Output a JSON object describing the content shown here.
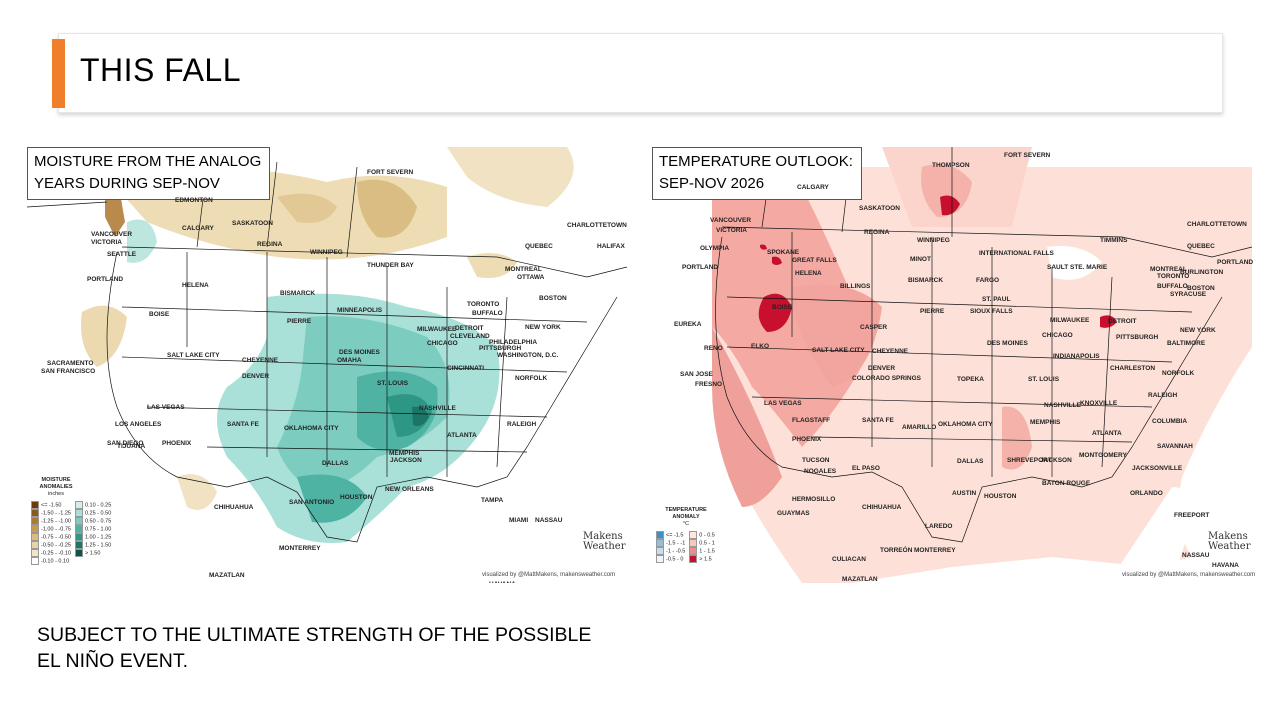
{
  "slide": {
    "title": "THIS FALL",
    "accent_color": "#f07f2b",
    "footnote_line1": "SUBJECT TO THE ULTIMATE STRENGTH OF THE POSSIBLE",
    "footnote_line2": "EL NIÑO EVENT."
  },
  "moisture_map": {
    "label_line1": "MOISTURE FROM THE ANALOG",
    "label_line2": "YEARS DURING SEP-NOV",
    "legend_title_1": "MOISTURE",
    "legend_title_2": "ANOMALIES",
    "legend_unit": "inches",
    "legend_left": [
      {
        "label": "<= -1.50",
        "color": "#6b3b0a"
      },
      {
        "label": "-1.50 - -1.25",
        "color": "#8c5a1b"
      },
      {
        "label": "-1.25 - -1.00",
        "color": "#ad7b35"
      },
      {
        "label": "-1.00 - -0.75",
        "color": "#c89a55"
      },
      {
        "label": "-0.75 - -0.50",
        "color": "#dcbb7e"
      },
      {
        "label": "-0.50 - -0.25",
        "color": "#e9d3a4"
      },
      {
        "label": "-0.25 - -0.10",
        "color": "#f3e6c8"
      },
      {
        "label": "-0.10 - 0.10",
        "color": "#ffffff"
      }
    ],
    "legend_right": [
      {
        "label": "0.10 - 0.25",
        "color": "#d4efeb"
      },
      {
        "label": "0.25 - 0.50",
        "color": "#a9e0d8"
      },
      {
        "label": "0.50 - 0.75",
        "color": "#7ccdc0"
      },
      {
        "label": "0.75 - 1.00",
        "color": "#4fb3a4"
      },
      {
        "label": "1.00 - 1.25",
        "color": "#2e9685"
      },
      {
        "label": "1.25 - 1.50",
        "color": "#1b7666"
      },
      {
        "label": "> 1.50",
        "color": "#0b5446"
      }
    ],
    "credit": "visualized by @MattMakens, makensweather.com",
    "logo_top": "Makens",
    "logo_bottom": "Weather",
    "cities": [
      {
        "name": "FORT SEVERN"
      },
      {
        "name": "EDMONTON"
      },
      {
        "name": "SASKATOON"
      },
      {
        "name": "CALGARY"
      },
      {
        "name": "REGINA"
      },
      {
        "name": "WINNIPEG"
      },
      {
        "name": "THUNDER BAY"
      },
      {
        "name": "VANCOUVER"
      },
      {
        "name": "VICTORIA"
      },
      {
        "name": "SEATTLE"
      },
      {
        "name": "CHARLOTTETOWN"
      },
      {
        "name": "HALIFAX"
      },
      {
        "name": "QUEBEC"
      },
      {
        "name": "MONTREAL"
      },
      {
        "name": "OTTAWA"
      },
      {
        "name": "PORTLAND"
      },
      {
        "name": "HELENA"
      },
      {
        "name": "BISMARCK"
      },
      {
        "name": "BOISE"
      },
      {
        "name": "PIERRE"
      },
      {
        "name": "MINNEAPOLIS"
      },
      {
        "name": "TORONTO"
      },
      {
        "name": "BUFFALO"
      },
      {
        "name": "BOSTON"
      },
      {
        "name": "NEW YORK"
      },
      {
        "name": "MILWAUKEE"
      },
      {
        "name": "DETROIT"
      },
      {
        "name": "CLEVELAND"
      },
      {
        "name": "PHILADELPHIA"
      },
      {
        "name": "CHICAGO"
      },
      {
        "name": "PITTSBURGH"
      },
      {
        "name": "WASHINGTON, D.C."
      },
      {
        "name": "DES MOINES"
      },
      {
        "name": "OMAHA"
      },
      {
        "name": "SACRAMENTO"
      },
      {
        "name": "SAN FRANCISCO"
      },
      {
        "name": "SALT LAKE CITY"
      },
      {
        "name": "CHEYENNE"
      },
      {
        "name": "DENVER"
      },
      {
        "name": "CINCINNATI"
      },
      {
        "name": "ST. LOUIS"
      },
      {
        "name": "NORFOLK"
      },
      {
        "name": "LAS VEGAS"
      },
      {
        "name": "NASHVILLE"
      },
      {
        "name": "RALEIGH"
      },
      {
        "name": "LOS ANGELES"
      },
      {
        "name": "SAN DIEGO"
      },
      {
        "name": "TIJUANA"
      },
      {
        "name": "SANTA FE"
      },
      {
        "name": "OKLAHOMA CITY"
      },
      {
        "name": "MEMPHIS"
      },
      {
        "name": "ATLANTA"
      },
      {
        "name": "PHOENIX"
      },
      {
        "name": "DALLAS"
      },
      {
        "name": "JACKSON"
      },
      {
        "name": "HOUSTON"
      },
      {
        "name": "SAN ANTONIO"
      },
      {
        "name": "NEW ORLEANS"
      },
      {
        "name": "CHIHUAHUA"
      },
      {
        "name": "TAMPA"
      },
      {
        "name": "MIAMI"
      },
      {
        "name": "NASSAU"
      },
      {
        "name": "MONTERREY"
      },
      {
        "name": "HAVANA"
      },
      {
        "name": "MAZATLAN"
      }
    ]
  },
  "temperature_map": {
    "label_line1": "TEMPERATURE OUTLOOK:",
    "label_line2": "SEP-NOV 2026",
    "legend_title_1": "TEMPERATURE",
    "legend_title_2": "ANOMALY",
    "legend_unit": "°C",
    "legend_left": [
      {
        "label": "<= -1.5",
        "color": "#3f8fc8"
      },
      {
        "label": "-1.5 - -1",
        "color": "#8fc0e0"
      },
      {
        "label": "-1 - -0.5",
        "color": "#c7def0"
      },
      {
        "label": "-0.5 - 0",
        "color": "#eef5fb"
      }
    ],
    "legend_right": [
      {
        "label": "0 - 0.5",
        "color": "#fde7e0"
      },
      {
        "label": "0.5 - 1",
        "color": "#f8c7bb"
      },
      {
        "label": "1 - 1.5",
        "color": "#ea8f88"
      },
      {
        "label": "> 1.5",
        "color": "#c8102e"
      }
    ],
    "credit": "visualized by @MattMakens, makensweather.com",
    "logo_top": "Makens",
    "logo_bottom": "Weather",
    "cities": [
      {
        "name": "THOMPSON"
      },
      {
        "name": "FORT SEVERN"
      },
      {
        "name": "VANCOUVER"
      },
      {
        "name": "CALGARY"
      },
      {
        "name": "SASKATOON"
      },
      {
        "name": "VICTORIA"
      },
      {
        "name": "REGINA"
      },
      {
        "name": "WINNIPEG"
      },
      {
        "name": "TIMMINS"
      },
      {
        "name": "CHARLOTTETOWN"
      },
      {
        "name": "OLYMPIA"
      },
      {
        "name": "SPOKANE"
      },
      {
        "name": "GREAT FALLS"
      },
      {
        "name": "HELENA"
      },
      {
        "name": "MINOT"
      },
      {
        "name": "INTERNATIONAL FALLS"
      },
      {
        "name": "QUEBEC"
      },
      {
        "name": "SAULT STE. MARIE"
      },
      {
        "name": "PORTLAND"
      },
      {
        "name": "BISMARCK"
      },
      {
        "name": "FARGO"
      },
      {
        "name": "MONTREAL"
      },
      {
        "name": "BURLINGTON"
      },
      {
        "name": "PORTLAND"
      },
      {
        "name": "BILLINGS"
      },
      {
        "name": "ST. PAUL"
      },
      {
        "name": "NEW YORK"
      },
      {
        "name": "TORONTO"
      },
      {
        "name": "BUFFALO"
      },
      {
        "name": "SYRACUSE"
      },
      {
        "name": "BOSTON"
      },
      {
        "name": "BOISE"
      },
      {
        "name": "PIERRE"
      },
      {
        "name": "SIOUX FALLS"
      },
      {
        "name": "MILWAUKEE"
      },
      {
        "name": "DETROIT"
      },
      {
        "name": "EUREKA"
      },
      {
        "name": "CASPER"
      },
      {
        "name": "CHICAGO"
      },
      {
        "name": "PITTSBURGH"
      },
      {
        "name": "BALTIMORE"
      },
      {
        "name": "ELKO"
      },
      {
        "name": "SALT LAKE CITY"
      },
      {
        "name": "CHEYENNE"
      },
      {
        "name": "DES MOINES"
      },
      {
        "name": "INDIANAPOLIS"
      },
      {
        "name": "RENO"
      },
      {
        "name": "DENVER"
      },
      {
        "name": "COLORADO SPRINGS"
      },
      {
        "name": "TOPEKA"
      },
      {
        "name": "ST. LOUIS"
      },
      {
        "name": "CHARLESTON"
      },
      {
        "name": "NORFOLK"
      },
      {
        "name": "SAN JOSE"
      },
      {
        "name": "FRESNO"
      },
      {
        "name": "LAS VEGAS"
      },
      {
        "name": "NASHVILLE"
      },
      {
        "name": "KNOXVILLE"
      },
      {
        "name": "RALEIGH"
      },
      {
        "name": "FLAGSTAFF"
      },
      {
        "name": "SANTA FE"
      },
      {
        "name": "AMARILLO"
      },
      {
        "name": "OKLAHOMA CITY"
      },
      {
        "name": "MEMPHIS"
      },
      {
        "name": "ATLANTA"
      },
      {
        "name": "COLUMBIA"
      },
      {
        "name": "PHOENIX"
      },
      {
        "name": "SAVANNAH"
      },
      {
        "name": "DALLAS"
      },
      {
        "name": "SHREVEPORT"
      },
      {
        "name": "JACKSON"
      },
      {
        "name": "MONTGOMERY"
      },
      {
        "name": "TUCSON"
      },
      {
        "name": "EL PASO"
      },
      {
        "name": "NOGALES"
      },
      {
        "name": "JACKSONVILLE"
      },
      {
        "name": "AUSTIN"
      },
      {
        "name": "HOUSTON"
      },
      {
        "name": "BATON ROUGE"
      },
      {
        "name": "ORLANDO"
      },
      {
        "name": "HERMOSILLO"
      },
      {
        "name": "CHIHUAHUA"
      },
      {
        "name": "GUAYMAS"
      },
      {
        "name": "LAREDO"
      },
      {
        "name": "FREEPORT"
      },
      {
        "name": "NASSAU"
      },
      {
        "name": "TORREÓN"
      },
      {
        "name": "MONTERREY"
      },
      {
        "name": "CULIACAN"
      },
      {
        "name": "HAVANA"
      },
      {
        "name": "MAZATLAN"
      }
    ]
  }
}
